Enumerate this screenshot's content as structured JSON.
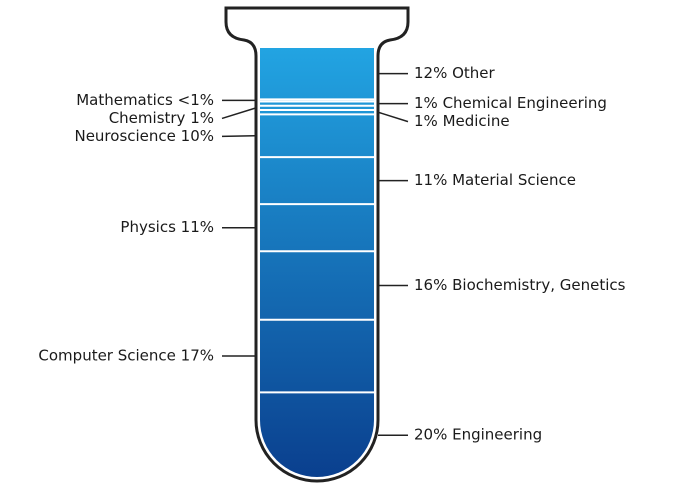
{
  "chart_data": {
    "type": "tube",
    "values": [
      12,
      0.5,
      1,
      1,
      1,
      10,
      11,
      11,
      16,
      17,
      20
    ],
    "value_labels": [
      "12% Other",
      "Mathematics <1%",
      "1% Chemical Engineering",
      "Chemistry 1%",
      "1% Medicine",
      "Neuroscience 10%",
      "11% Material Science",
      "Physics 11%",
      "16% Biochemistry, Genetics",
      "Computer Science 17%",
      "20% Engineering"
    ],
    "colors": [
      "#22a4e2",
      "#0a3f8e"
    ]
  }
}
